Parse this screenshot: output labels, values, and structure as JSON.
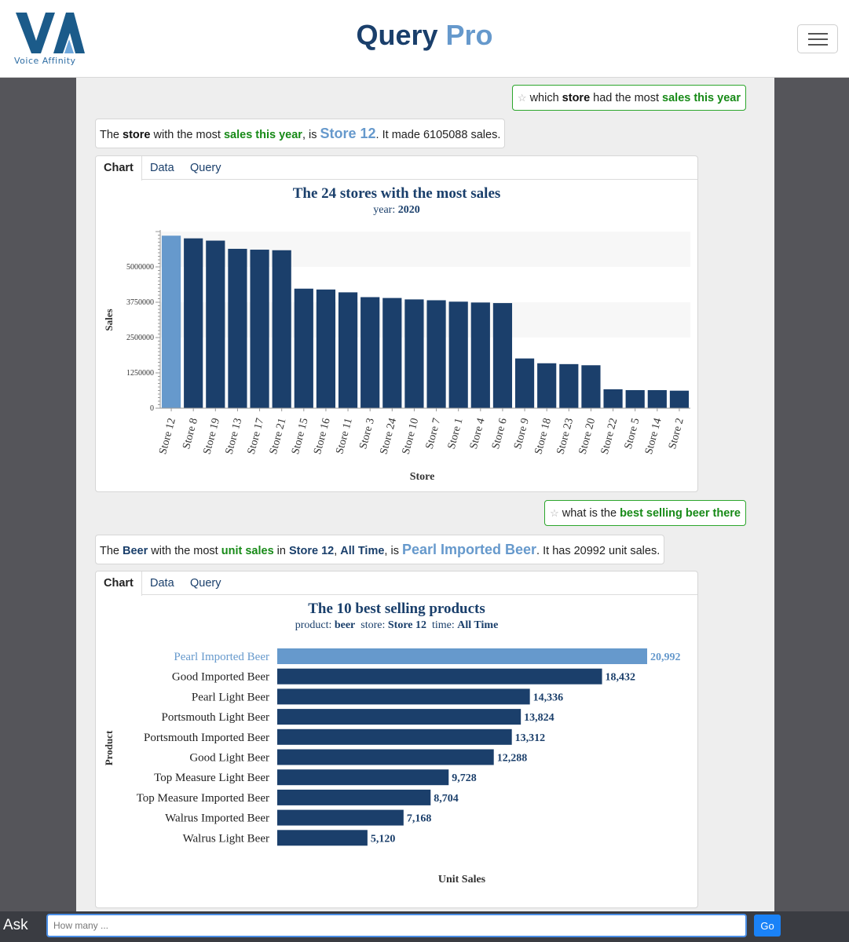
{
  "header": {
    "logo_text": "VA",
    "logo_sub": "Voice Affinity",
    "title_main": "Query",
    "title_accent": "Pro"
  },
  "conversation": [
    {
      "query": {
        "parts": [
          "which ",
          "store",
          " had the most ",
          "sales this year"
        ]
      },
      "answer": {
        "parts": [
          "The ",
          "store",
          " with the most ",
          "sales this year",
          ", is ",
          "Store 12",
          ". It made 6105088 sales."
        ]
      },
      "tabs": [
        "Chart",
        "Data",
        "Query"
      ]
    },
    {
      "query": {
        "parts": [
          "what is the ",
          "best selling beer there"
        ]
      },
      "answer": {
        "parts": [
          "The ",
          "Beer",
          " with the most ",
          "unit sales",
          " in ",
          "Store 12",
          ", ",
          "All Time",
          ", is ",
          "Pearl Imported Beer",
          ". It has 20992 unit sales."
        ]
      },
      "tabs": [
        "Chart",
        "Data",
        "Query"
      ]
    }
  ],
  "chart_data": [
    {
      "type": "bar",
      "title": "The 24 stores with the most sales",
      "subtitle_label": "year:",
      "subtitle_value": "2020",
      "xlabel": "Store",
      "ylabel": "Sales",
      "ylim": [
        0,
        6250000
      ],
      "yticks": [
        "0",
        "1250000",
        "2500000",
        "3750000",
        "5000000"
      ],
      "categories": [
        "Store 12",
        "Store 8",
        "Store 19",
        "Store 13",
        "Store 17",
        "Store 21",
        "Store 15",
        "Store 16",
        "Store 11",
        "Store 3",
        "Store 24",
        "Store 10",
        "Store 7",
        "Store 1",
        "Store 4",
        "Store 6",
        "Store 9",
        "Store 18",
        "Store 23",
        "Store 20",
        "Store 22",
        "Store 5",
        "Store 14",
        "Store 2"
      ],
      "values": [
        6105088,
        6010000,
        5930000,
        5640000,
        5610000,
        5590000,
        4230000,
        4200000,
        4100000,
        3930000,
        3900000,
        3850000,
        3820000,
        3770000,
        3740000,
        3720000,
        1760000,
        1590000,
        1560000,
        1520000,
        670000,
        640000,
        640000,
        620000
      ],
      "highlight_index": 0,
      "colors": {
        "bar": "#1b3f6b",
        "highlight": "#6699cc",
        "band": "#f7f7f7"
      }
    },
    {
      "type": "bar",
      "orientation": "horizontal",
      "title": "The 10 best selling products",
      "subtitle_parts": [
        "product:",
        "beer",
        "store:",
        "Store 12",
        "time:",
        "All Time"
      ],
      "xlabel": "Unit Sales",
      "ylabel": "Product",
      "categories": [
        "Pearl Imported Beer",
        "Good Imported Beer",
        "Pearl Light Beer",
        "Portsmouth Light Beer",
        "Portsmouth Imported Beer",
        "Good Light Beer",
        "Top Measure Light Beer",
        "Top Measure Imported Beer",
        "Walrus Imported Beer",
        "Walrus Light Beer"
      ],
      "values": [
        20992,
        18432,
        14336,
        13824,
        13312,
        12288,
        9728,
        8704,
        7168,
        5120
      ],
      "value_labels": [
        "20,992",
        "18,432",
        "14,336",
        "13,824",
        "13,312",
        "12,288",
        "9,728",
        "8,704",
        "7,168",
        "5,120"
      ],
      "highlight_index": 0,
      "colors": {
        "bar": "#1b3f6b",
        "highlight": "#6699cc"
      }
    }
  ],
  "askbar": {
    "label": "Ask",
    "placeholder": "How many ...",
    "go_label": "Go"
  }
}
